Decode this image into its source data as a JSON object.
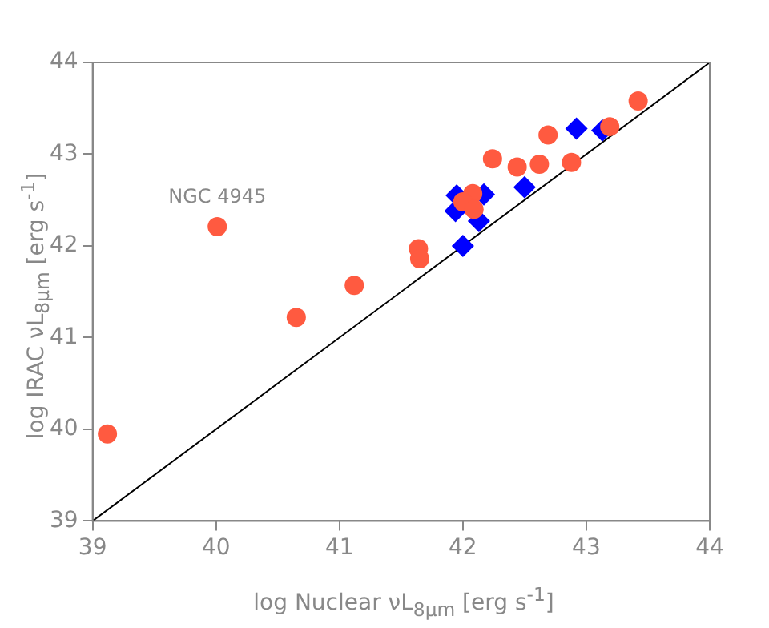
{
  "chart_data": {
    "type": "scatter",
    "xlabel": "log Nuclear νL$_{8μm}$ [erg s$^{-1}$]",
    "ylabel": "log IRAC νL$_{8μm}$ [erg s$^{-1}$]",
    "xlim": [
      39,
      44
    ],
    "xticks": [
      39,
      40,
      41,
      42,
      43,
      44
    ],
    "ylim": [
      39,
      44
    ],
    "yticks": [
      39,
      40,
      41,
      42,
      43,
      44
    ],
    "grid": false,
    "legend": false,
    "series": [
      {
        "type": "scatter",
        "marker": "circle",
        "color": "#ff5a40",
        "x": [
          39.12,
          40.01,
          40.65,
          41.12,
          41.64,
          41.65,
          42.08,
          42.0,
          42.09,
          42.24,
          42.44,
          42.62,
          42.69,
          42.88,
          43.19,
          43.42
        ],
        "values": [
          39.95,
          42.21,
          41.22,
          41.57,
          41.97,
          41.86,
          42.57,
          42.48,
          42.4,
          42.95,
          42.86,
          42.89,
          43.21,
          42.91,
          43.3,
          43.58
        ]
      },
      {
        "type": "scatter",
        "marker": "diamond",
        "color": "#0000ff",
        "x": [
          41.95,
          41.94,
          42.0,
          42.13,
          42.17,
          42.5,
          42.92,
          43.13
        ],
        "values": [
          42.55,
          42.38,
          42.0,
          42.27,
          42.56,
          42.64,
          43.28,
          43.26
        ]
      },
      {
        "type": "line",
        "marker": "none",
        "color": "#000000",
        "x": [
          39,
          44
        ],
        "values": [
          39,
          44
        ]
      }
    ],
    "annotations": [
      {
        "text": "NGC 4945",
        "x": 40.01,
        "y": 42.21
      }
    ]
  }
}
